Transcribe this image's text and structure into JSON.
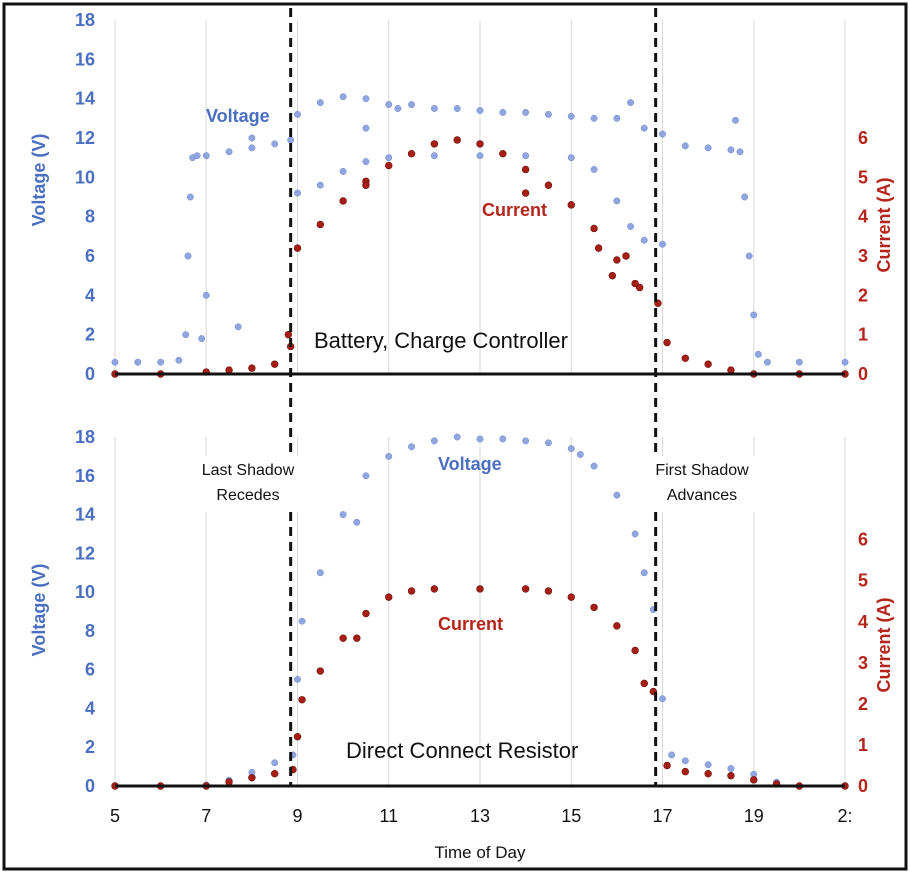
{
  "colors": {
    "voltage": "#8fa6e0",
    "voltage_text": "#4a6fc1",
    "current": "#a61e14",
    "current_edge": "#6b0f0a",
    "current_text": "#b5241b",
    "divider": "#111111"
  },
  "x_axis": {
    "label": "Time of Day",
    "ticks": [
      "5",
      "7",
      "9",
      "11",
      "13",
      "15",
      "17",
      "19",
      "2:"
    ],
    "range": [
      5,
      21
    ]
  },
  "annotations": {
    "left_shadow_line1": "Last Shadow",
    "left_shadow_line2": "Recedes",
    "right_shadow_line1": "First Shadow",
    "right_shadow_line2": "Advances",
    "left_divider_x": 8.85,
    "right_divider_x": 16.85
  },
  "chart_data": [
    {
      "type": "scatter",
      "title": "Battery, Charge Controller",
      "xlabel": "",
      "ylabel": "Voltage (V)",
      "ylabel_right": "Current (A)",
      "xlim": [
        5,
        21
      ],
      "ylim": [
        0,
        18
      ],
      "ylim_right": [
        0,
        9
      ],
      "yticks": [
        "0",
        "2",
        "4",
        "6",
        "8",
        "10",
        "12",
        "14",
        "16",
        "18"
      ],
      "yticks_right": [
        "0",
        "1",
        "2",
        "3",
        "4",
        "5",
        "6"
      ],
      "grid": true,
      "series": [
        {
          "name": "Voltage",
          "axis": "left",
          "points": [
            [
              5,
              0.6
            ],
            [
              5.5,
              0.6
            ],
            [
              6,
              0.6
            ],
            [
              6.4,
              0.7
            ],
            [
              6.55,
              2
            ],
            [
              6.6,
              6
            ],
            [
              6.65,
              9
            ],
            [
              6.7,
              11
            ],
            [
              6.8,
              11.1
            ],
            [
              7,
              11.1
            ],
            [
              7.5,
              11.3
            ],
            [
              8,
              11.5
            ],
            [
              8.5,
              11.7
            ],
            [
              8.85,
              11.9
            ],
            [
              9,
              13.2
            ],
            [
              9.5,
              13.8
            ],
            [
              10,
              14.1
            ],
            [
              10.5,
              14
            ],
            [
              11,
              13.7
            ],
            [
              11.5,
              13.7
            ],
            [
              12,
              13.5
            ],
            [
              12.5,
              13.5
            ],
            [
              13,
              13.4
            ],
            [
              13.5,
              13.3
            ],
            [
              14,
              13.3
            ],
            [
              14.5,
              13.2
            ],
            [
              15,
              13.1
            ],
            [
              15.5,
              13
            ],
            [
              16,
              13
            ],
            [
              16.3,
              13.8
            ],
            [
              16.6,
              12.5
            ],
            [
              17,
              12.2
            ],
            [
              17.5,
              11.6
            ],
            [
              18,
              11.5
            ],
            [
              18.5,
              11.4
            ],
            [
              18.7,
              11.3
            ],
            [
              18.8,
              9
            ],
            [
              18.9,
              6
            ],
            [
              19,
              3
            ],
            [
              19.1,
              1
            ],
            [
              19.3,
              0.6
            ],
            [
              20,
              0.6
            ],
            [
              21,
              0.6
            ],
            [
              9,
              9.2
            ],
            [
              9.5,
              9.6
            ],
            [
              10,
              10.3
            ],
            [
              10.5,
              10.8
            ],
            [
              11,
              11
            ],
            [
              12,
              11.1
            ],
            [
              13,
              11.1
            ],
            [
              14,
              11.1
            ],
            [
              15,
              11
            ],
            [
              15.5,
              10.4
            ],
            [
              16,
              8.8
            ],
            [
              16.3,
              7.5
            ],
            [
              16.6,
              6.8
            ],
            [
              17,
              6.6
            ],
            [
              6.9,
              1.8
            ],
            [
              7,
              4
            ],
            [
              7.7,
              2.4
            ],
            [
              8,
              12
            ],
            [
              10.5,
              12.5
            ],
            [
              11.2,
              13.5
            ],
            [
              18.6,
              12.9
            ]
          ]
        },
        {
          "name": "Current",
          "axis": "right",
          "points": [
            [
              5,
              0
            ],
            [
              6,
              0
            ],
            [
              7,
              0.05
            ],
            [
              7.5,
              0.1
            ],
            [
              8,
              0.15
            ],
            [
              8.5,
              0.25
            ],
            [
              8.85,
              0.7
            ],
            [
              9,
              3.2
            ],
            [
              9.5,
              3.8
            ],
            [
              10,
              4.4
            ],
            [
              10.5,
              4.9
            ],
            [
              11,
              5.3
            ],
            [
              11.5,
              5.6
            ],
            [
              12,
              5.85
            ],
            [
              12.5,
              5.95
            ],
            [
              13,
              5.85
            ],
            [
              13.5,
              5.6
            ],
            [
              14,
              5.2
            ],
            [
              14.5,
              4.8
            ],
            [
              15,
              4.3
            ],
            [
              15.5,
              3.7
            ],
            [
              16,
              2.9
            ],
            [
              16.5,
              2.2
            ],
            [
              16.9,
              1.8
            ],
            [
              17.1,
              0.8
            ],
            [
              17.5,
              0.4
            ],
            [
              18,
              0.25
            ],
            [
              18.5,
              0.1
            ],
            [
              19,
              0
            ],
            [
              20,
              0
            ],
            [
              21,
              0
            ],
            [
              10.5,
              4.8
            ],
            [
              14,
              4.6
            ],
            [
              15.6,
              3.2
            ],
            [
              15.9,
              2.5
            ],
            [
              16.2,
              3
            ],
            [
              16.4,
              2.3
            ],
            [
              8.8,
              1
            ]
          ]
        }
      ]
    },
    {
      "type": "scatter",
      "title": "Direct Connect Resistor",
      "xlabel": "Time of Day",
      "ylabel": "Voltage  (V)",
      "ylabel_right": "Current (A)",
      "xlim": [
        5,
        21
      ],
      "ylim": [
        0,
        18
      ],
      "ylim_right": [
        0,
        8.5
      ],
      "yticks": [
        "0",
        "2",
        "4",
        "6",
        "8",
        "10",
        "12",
        "14",
        "16",
        "18"
      ],
      "yticks_right": [
        "0",
        "1",
        "2",
        "3",
        "4",
        "5",
        "6"
      ],
      "grid": true,
      "series": [
        {
          "name": "Voltage",
          "axis": "left",
          "points": [
            [
              5,
              0
            ],
            [
              6,
              0
            ],
            [
              7,
              0.05
            ],
            [
              7.5,
              0.3
            ],
            [
              8,
              0.7
            ],
            [
              8.5,
              1.2
            ],
            [
              8.9,
              1.6
            ],
            [
              9,
              5.5
            ],
            [
              9.1,
              8.5
            ],
            [
              9.5,
              11
            ],
            [
              10,
              14
            ],
            [
              10.5,
              16
            ],
            [
              11,
              17
            ],
            [
              11.5,
              17.5
            ],
            [
              12,
              17.8
            ],
            [
              12.5,
              18
            ],
            [
              13,
              17.9
            ],
            [
              13.5,
              17.9
            ],
            [
              14,
              17.8
            ],
            [
              14.5,
              17.7
            ],
            [
              15,
              17.4
            ],
            [
              15.5,
              16.5
            ],
            [
              16,
              15
            ],
            [
              16.4,
              13
            ],
            [
              16.6,
              11
            ],
            [
              16.8,
              9.1
            ],
            [
              17,
              4.5
            ],
            [
              17.2,
              1.6
            ],
            [
              17.5,
              1.3
            ],
            [
              18,
              1.1
            ],
            [
              18.5,
              0.9
            ],
            [
              19,
              0.6
            ],
            [
              19.5,
              0.2
            ],
            [
              20,
              0
            ],
            [
              21,
              0
            ],
            [
              10.3,
              13.6
            ],
            [
              15.2,
              17.1
            ]
          ]
        },
        {
          "name": "Current",
          "axis": "right",
          "points": [
            [
              5,
              0
            ],
            [
              6,
              0
            ],
            [
              7,
              0
            ],
            [
              7.5,
              0.1
            ],
            [
              8,
              0.2
            ],
            [
              8.5,
              0.3
            ],
            [
              8.9,
              0.4
            ],
            [
              9,
              1.2
            ],
            [
              9.1,
              2.1
            ],
            [
              9.5,
              2.8
            ],
            [
              10,
              3.6
            ],
            [
              10.5,
              4.2
            ],
            [
              11,
              4.6
            ],
            [
              11.5,
              4.75
            ],
            [
              12,
              4.8
            ],
            [
              13,
              4.8
            ],
            [
              14,
              4.8
            ],
            [
              14.5,
              4.75
            ],
            [
              15,
              4.6
            ],
            [
              15.5,
              4.35
            ],
            [
              16,
              3.9
            ],
            [
              16.4,
              3.3
            ],
            [
              16.6,
              2.5
            ],
            [
              16.8,
              2.3
            ],
            [
              17.1,
              0.5
            ],
            [
              17.5,
              0.35
            ],
            [
              18,
              0.3
            ],
            [
              18.5,
              0.25
            ],
            [
              19,
              0.15
            ],
            [
              19.5,
              0.05
            ],
            [
              20,
              0
            ],
            [
              21,
              0
            ],
            [
              10.3,
              3.6
            ]
          ]
        }
      ]
    }
  ]
}
